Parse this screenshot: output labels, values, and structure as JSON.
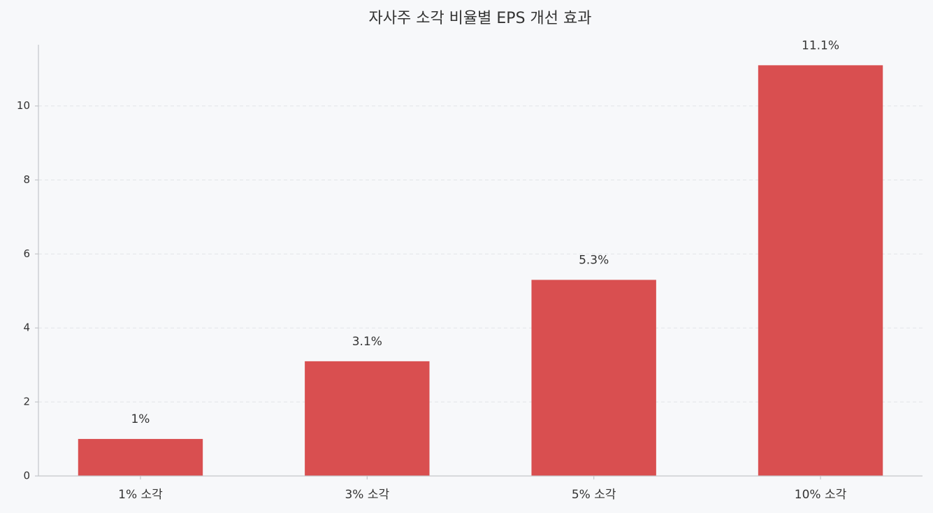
{
  "chart_data": {
    "type": "bar",
    "title": "자사주 소각 비율별 EPS 개선 효과",
    "categories": [
      "1% 소각",
      "3% 소각",
      "5% 소각",
      "10% 소각"
    ],
    "values": [
      1,
      3.1,
      5.3,
      11.1
    ],
    "value_labels": [
      "1%",
      "3.1%",
      "5.3%",
      "11.1%"
    ],
    "color": "#d94f50",
    "ylim": [
      0,
      11.655
    ],
    "yticks": [
      0,
      2,
      4,
      6,
      8,
      10
    ],
    "grid": true
  }
}
